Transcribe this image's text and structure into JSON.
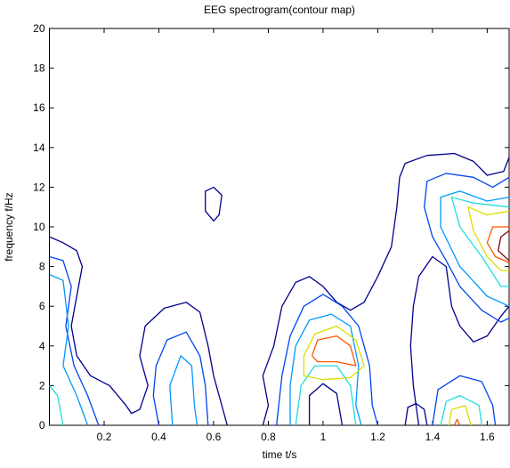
{
  "chart_data": {
    "type": "contour",
    "title": "EEG spectrogram(contour map)",
    "xlabel": "time t/s",
    "ylabel": "frequency f/Hz",
    "xlim": [
      0,
      1.68
    ],
    "ylim": [
      0,
      20
    ],
    "xticks": [
      0.2,
      0.4,
      0.6,
      0.8,
      1,
      1.2,
      1.4,
      1.6
    ],
    "yticks": [
      0,
      2,
      4,
      6,
      8,
      10,
      12,
      14,
      16,
      18,
      20
    ],
    "contours": [
      {
        "color": "#00008f",
        "x": [
          0,
          0.05,
          0.1,
          0.12,
          0.1,
          0.08,
          0.1,
          0.15,
          0.22,
          0.28,
          0.3,
          0.33,
          0.36,
          0.33,
          0.35,
          0.42,
          0.5,
          0.55,
          0.58,
          0.6,
          0.63,
          0.65
        ],
        "y": [
          9.5,
          9.2,
          8.8,
          8,
          6.5,
          5,
          3.5,
          2.5,
          2,
          1,
          0.6,
          0.8,
          2,
          3.5,
          5,
          5.9,
          6.2,
          5.7,
          4,
          2.5,
          1,
          0
        ]
      },
      {
        "color": "#00008f",
        "x": [
          0.78,
          0.8,
          0.78,
          0.82,
          0.85,
          0.9,
          0.95,
          1,
          1.05,
          1.1,
          1.15,
          1.2,
          1.25,
          1.27,
          1.28,
          1.3,
          1.38,
          1.48,
          1.55,
          1.6,
          1.66,
          1.68
        ],
        "y": [
          0,
          1,
          2.5,
          4,
          6,
          7.2,
          7.5,
          7,
          6.2,
          5.8,
          6.2,
          7.5,
          9,
          11,
          12.5,
          13.2,
          13.6,
          13.7,
          13.3,
          12.6,
          12.8,
          13.5
        ]
      },
      {
        "color": "#00008f",
        "x": [
          1.35,
          1.33,
          1.32,
          1.33,
          1.35,
          1.4,
          1.45,
          1.47,
          1.5,
          1.55,
          1.6,
          1.65,
          1.68
        ],
        "y": [
          0,
          2,
          4,
          6,
          7.5,
          8.5,
          8,
          6,
          5,
          4.2,
          4.5,
          5.5,
          6
        ]
      },
      {
        "color": "#00008f",
        "x": [
          0.95,
          0.95,
          1,
          1.05,
          1.07
        ],
        "y": [
          0,
          1.5,
          2.1,
          1.6,
          0
        ]
      },
      {
        "color": "#00008f",
        "x": [
          1.3,
          1.31,
          1.34,
          1.37,
          1.38
        ],
        "y": [
          0,
          0.9,
          1.1,
          0.8,
          0
        ]
      },
      {
        "color": "#00008f",
        "x": [
          0.6,
          0.63,
          0.62,
          0.6,
          0.57,
          0.57,
          0.6
        ],
        "y": [
          12,
          11.6,
          10.6,
          10.3,
          10.8,
          11.8,
          12
        ]
      },
      {
        "color": "#0044ee",
        "x": [
          0,
          0.05,
          0.08,
          0.06,
          0.09,
          0.14,
          0.18
        ],
        "y": [
          8.5,
          8.3,
          7,
          5,
          3,
          1.5,
          0
        ]
      },
      {
        "color": "#0044ee",
        "x": [
          0.4,
          0.38,
          0.39,
          0.43,
          0.5,
          0.55,
          0.57,
          0.58
        ],
        "y": [
          0,
          1.5,
          3,
          4.3,
          4.7,
          3.5,
          2,
          0
        ]
      },
      {
        "color": "#0044ee",
        "x": [
          0.83,
          0.85,
          0.88,
          0.93,
          1,
          1.07,
          1.13,
          1.17,
          1.18,
          1.2
        ],
        "y": [
          0,
          2.5,
          4.5,
          6,
          6.6,
          6,
          5,
          3,
          1,
          0
        ]
      },
      {
        "color": "#0044ee",
        "x": [
          1.68,
          1.62,
          1.55,
          1.45,
          1.38,
          1.37,
          1.4,
          1.45,
          1.5,
          1.58,
          1.65,
          1.68
        ],
        "y": [
          12.5,
          12,
          12.5,
          12.7,
          12.3,
          11,
          9.5,
          8.3,
          7,
          5.8,
          5.2,
          5.4
        ]
      },
      {
        "color": "#0044ee",
        "x": [
          1.4,
          1.42,
          1.5,
          1.58,
          1.62,
          1.63
        ],
        "y": [
          0,
          1.8,
          2.5,
          2.2,
          1,
          0
        ]
      },
      {
        "color": "#0099ff",
        "x": [
          0,
          0.05,
          0.07,
          0.05,
          0.1,
          0.14
        ],
        "y": [
          7.6,
          7.3,
          5,
          3,
          1.5,
          0
        ]
      },
      {
        "color": "#0099ff",
        "x": [
          0.45,
          0.44,
          0.48,
          0.52,
          0.53,
          0.54
        ],
        "y": [
          0,
          2,
          3.5,
          3,
          1,
          0
        ]
      },
      {
        "color": "#0099ff",
        "x": [
          0.88,
          0.88,
          0.9,
          0.95,
          1.03,
          1.1,
          1.13,
          1.12,
          1.14
        ],
        "y": [
          0,
          2,
          4,
          5.3,
          5.6,
          5,
          3,
          1,
          0
        ]
      },
      {
        "color": "#0099ff",
        "x": [
          1.68,
          1.6,
          1.5,
          1.43,
          1.43,
          1.5,
          1.6,
          1.68
        ],
        "y": [
          11.5,
          11.3,
          11.8,
          11.5,
          10,
          8,
          6.5,
          6
        ]
      },
      {
        "color": "#22dddd",
        "x": [
          0.05,
          0.03,
          0
        ],
        "y": [
          0,
          1.5,
          2
        ]
      },
      {
        "color": "#22dddd",
        "x": [
          0.9,
          0.92,
          0.97,
          1.05,
          1.1,
          1.12
        ],
        "y": [
          0,
          2,
          3,
          3,
          2,
          0
        ]
      },
      {
        "color": "#22dddd",
        "x": [
          1.68,
          1.55,
          1.47,
          1.5,
          1.58,
          1.65,
          1.68
        ],
        "y": [
          11,
          11.2,
          11.5,
          10,
          8.5,
          7,
          7
        ]
      },
      {
        "color": "#22dddd",
        "x": [
          1.43,
          1.45,
          1.5,
          1.57,
          1.58
        ],
        "y": [
          0,
          1.2,
          1.5,
          1,
          0
        ]
      },
      {
        "color": "#dddd00",
        "x": [
          0.93,
          0.93,
          0.97,
          1.05,
          1.12,
          1.15,
          1.1,
          1,
          0.93
        ],
        "y": [
          2.5,
          3.5,
          4.6,
          5,
          4.3,
          3,
          2.4,
          2.3,
          2.5
        ]
      },
      {
        "color": "#dddd00",
        "x": [
          1.68,
          1.6,
          1.53,
          1.55,
          1.6,
          1.65,
          1.68
        ],
        "y": [
          10.8,
          10.6,
          11,
          9.8,
          8.5,
          7.8,
          7.8
        ]
      },
      {
        "color": "#dddd00",
        "x": [
          1.46,
          1.47,
          1.52,
          1.54
        ],
        "y": [
          0,
          0.8,
          1,
          0
        ]
      },
      {
        "color": "#ff5500",
        "x": [
          0.96,
          0.98,
          1.05,
          1.1,
          1.12,
          1.05,
          0.98,
          0.96
        ],
        "y": [
          3.5,
          4.3,
          4.5,
          4,
          3,
          3.2,
          3.2,
          3.5
        ]
      },
      {
        "color": "#ff5500",
        "x": [
          1.68,
          1.62,
          1.6,
          1.63,
          1.68
        ],
        "y": [
          10,
          10,
          9.2,
          8.5,
          8.2
        ]
      },
      {
        "color": "#ff5500",
        "x": [
          1.48,
          1.49,
          1.5
        ],
        "y": [
          0,
          0.3,
          0
        ]
      },
      {
        "color": "#880000",
        "x": [
          1.68,
          1.65,
          1.64,
          1.68
        ],
        "y": [
          9.8,
          9.5,
          8.8,
          8.3
        ]
      }
    ]
  }
}
